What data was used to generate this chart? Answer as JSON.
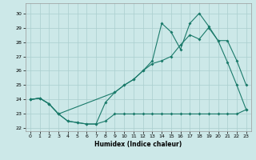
{
  "xlabel": "Humidex (Indice chaleur)",
  "bg_color": "#cce8e8",
  "grid_color": "#aacece",
  "line_color": "#1a7a6a",
  "xlim": [
    -0.5,
    23.5
  ],
  "ylim": [
    21.8,
    30.7
  ],
  "xticks": [
    0,
    1,
    2,
    3,
    4,
    5,
    6,
    7,
    8,
    9,
    10,
    11,
    12,
    13,
    14,
    15,
    16,
    17,
    18,
    19,
    20,
    21,
    22,
    23
  ],
  "yticks": [
    22,
    23,
    24,
    25,
    26,
    27,
    28,
    29,
    30
  ],
  "series_flat_x": [
    0,
    1,
    2,
    3,
    4,
    5,
    6,
    7,
    8,
    9,
    10,
    11,
    12,
    13,
    14,
    15,
    16,
    17,
    18,
    19,
    20,
    21,
    22,
    23
  ],
  "series_flat_y": [
    24.0,
    24.1,
    23.7,
    23.0,
    22.5,
    22.4,
    22.3,
    22.3,
    22.5,
    23.0,
    23.0,
    23.0,
    23.0,
    23.0,
    23.0,
    23.0,
    23.0,
    23.0,
    23.0,
    23.0,
    23.0,
    23.0,
    23.0,
    23.3
  ],
  "series_main_x": [
    0,
    1,
    2,
    3,
    4,
    5,
    6,
    7,
    8,
    9,
    10,
    11,
    12,
    13,
    14,
    15,
    16,
    17,
    18,
    19,
    20,
    21,
    22,
    23
  ],
  "series_main_y": [
    24.0,
    24.1,
    23.7,
    23.0,
    22.5,
    22.4,
    22.3,
    22.3,
    23.8,
    24.5,
    25.0,
    25.4,
    26.0,
    26.5,
    26.7,
    27.0,
    27.8,
    28.5,
    28.2,
    29.0,
    28.1,
    26.6,
    25.0,
    23.3
  ],
  "series_zigzag_x": [
    0,
    1,
    2,
    3,
    9,
    10,
    11,
    12,
    13,
    14,
    15,
    16,
    17,
    18,
    19,
    20,
    21,
    22,
    23
  ],
  "series_zigzag_y": [
    24.0,
    24.1,
    23.7,
    23.0,
    24.5,
    25.0,
    25.4,
    26.0,
    26.7,
    29.3,
    28.7,
    27.5,
    29.3,
    30.0,
    29.1,
    28.1,
    28.1,
    26.7,
    25.0
  ]
}
